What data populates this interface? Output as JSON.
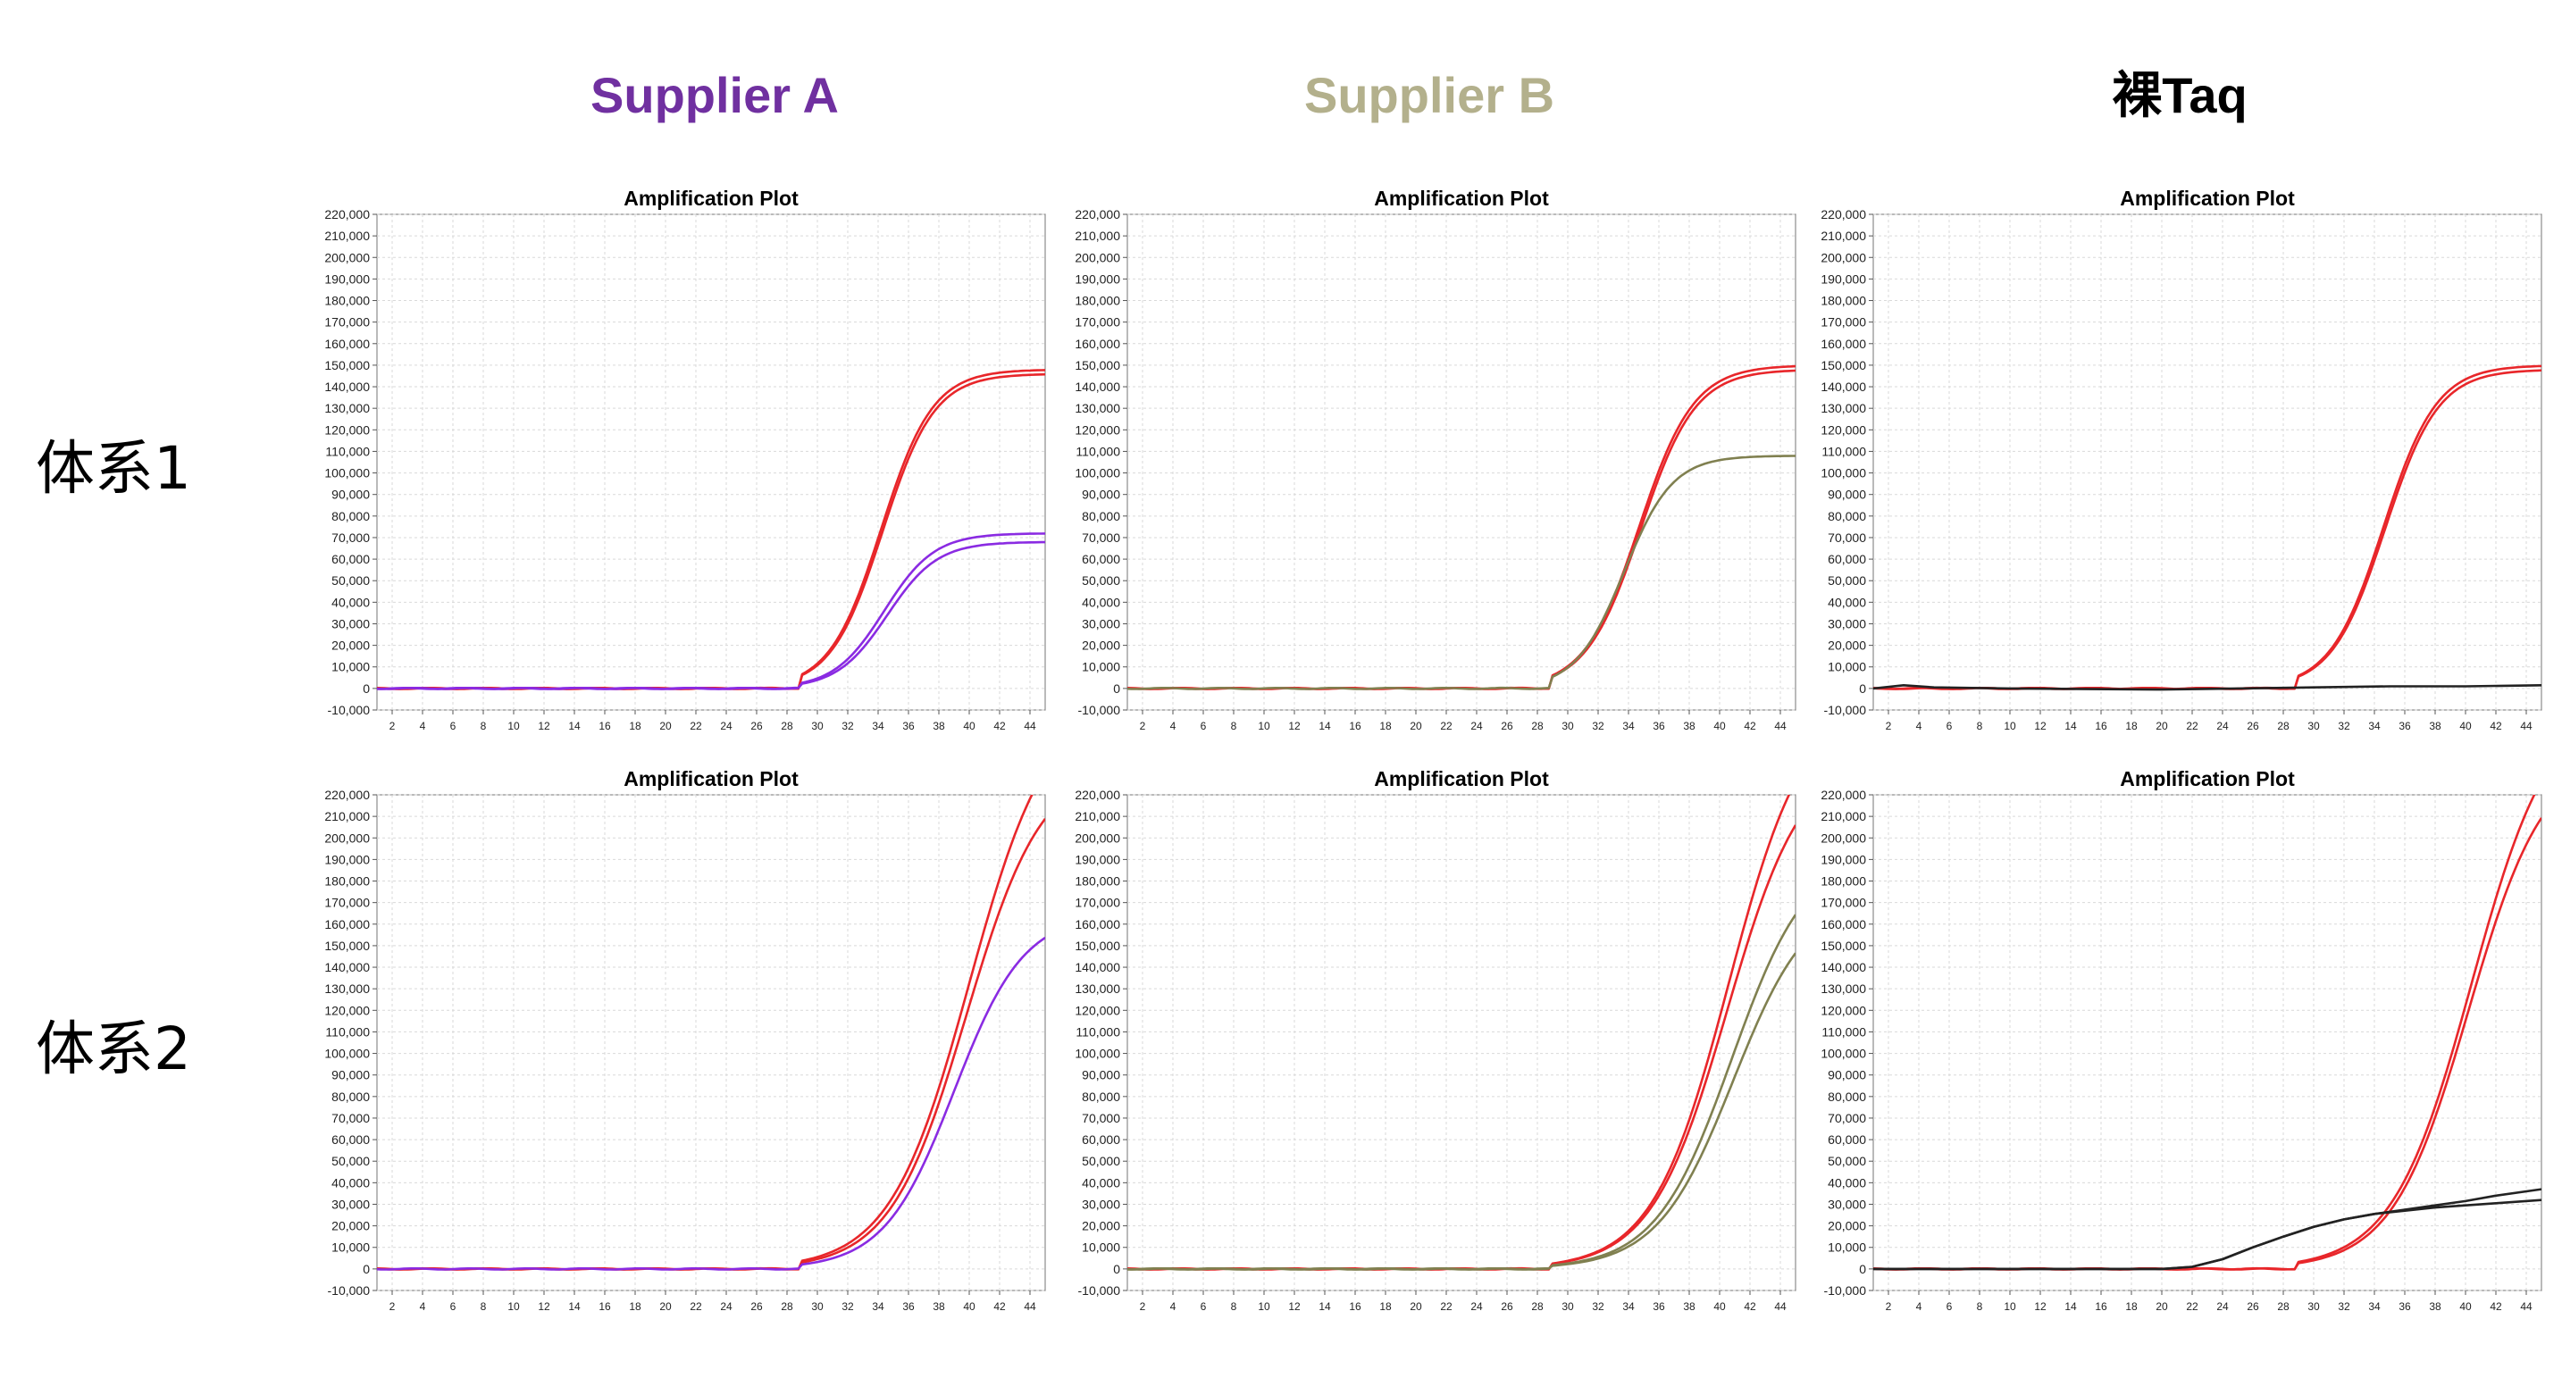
{
  "colors": {
    "supplier_a": "#7030a0",
    "supplier_b": "#b3b08c",
    "bare_taq": "#000000",
    "red_curve": "#e8262a",
    "purple_curve": "#8a2be2",
    "olive_curve": "#808050",
    "black_curve": "#222222",
    "grid": "#d9d9d9"
  },
  "column_headers": [
    "Supplier A",
    "Supplier B",
    "裸Taq"
  ],
  "row_labels": [
    "体系1",
    "体系2"
  ],
  "chart_data": [
    {
      "type": "line",
      "title": "Amplification Plot",
      "xlabel": "",
      "ylabel": "",
      "xlim": [
        1,
        45
      ],
      "ylim": [
        -10000,
        220000
      ],
      "x_ticks": [
        2,
        4,
        6,
        8,
        10,
        12,
        14,
        16,
        18,
        20,
        22,
        24,
        26,
        28,
        30,
        32,
        34,
        36,
        38,
        40,
        42,
        44
      ],
      "y_ticks": [
        -10000,
        0,
        10000,
        20000,
        30000,
        40000,
        50000,
        60000,
        70000,
        80000,
        90000,
        100000,
        110000,
        120000,
        130000,
        140000,
        150000,
        160000,
        170000,
        180000,
        190000,
        200000,
        210000,
        220000
      ],
      "grid": true,
      "series": [
        {
          "color": "red_curve",
          "plateau": 148000,
          "midpoint": 34.2,
          "slope": 1.7,
          "min_cycle": 29
        },
        {
          "color": "red_curve",
          "plateau": 146000,
          "midpoint": 34.3,
          "slope": 1.7,
          "min_cycle": 29
        },
        {
          "color": "purple_curve",
          "plateau": 72000,
          "midpoint": 34.4,
          "slope": 1.65,
          "min_cycle": 29
        },
        {
          "color": "purple_curve",
          "plateau": 68000,
          "midpoint": 34.6,
          "slope": 1.65,
          "min_cycle": 29
        }
      ]
    },
    {
      "type": "line",
      "title": "Amplification Plot",
      "xlabel": "",
      "ylabel": "",
      "xlim": [
        1,
        45
      ],
      "ylim": [
        -10000,
        220000
      ],
      "x_ticks": [
        2,
        4,
        6,
        8,
        10,
        12,
        14,
        16,
        18,
        20,
        22,
        24,
        26,
        28,
        30,
        32,
        34,
        36,
        38,
        40,
        42,
        44
      ],
      "y_ticks": [
        -10000,
        0,
        10000,
        20000,
        30000,
        40000,
        50000,
        60000,
        70000,
        80000,
        90000,
        100000,
        110000,
        120000,
        130000,
        140000,
        150000,
        160000,
        170000,
        180000,
        190000,
        200000,
        210000,
        220000
      ],
      "grid": true,
      "series": [
        {
          "color": "red_curve",
          "plateau": 150000,
          "midpoint": 34.7,
          "slope": 1.8,
          "min_cycle": 29
        },
        {
          "color": "red_curve",
          "plateau": 148000,
          "midpoint": 34.8,
          "slope": 1.8,
          "min_cycle": 29
        },
        {
          "color": "olive_curve",
          "plateau": 108000,
          "midpoint": 33.7,
          "slope": 1.6,
          "min_cycle": 29
        }
      ]
    },
    {
      "type": "line",
      "title": "Amplification Plot",
      "xlabel": "",
      "ylabel": "",
      "xlim": [
        1,
        45
      ],
      "ylim": [
        -10000,
        220000
      ],
      "x_ticks": [
        2,
        4,
        6,
        8,
        10,
        12,
        14,
        16,
        18,
        20,
        22,
        24,
        26,
        28,
        30,
        32,
        34,
        36,
        38,
        40,
        42,
        44
      ],
      "y_ticks": [
        -10000,
        0,
        10000,
        20000,
        30000,
        40000,
        50000,
        60000,
        70000,
        80000,
        90000,
        100000,
        110000,
        120000,
        130000,
        140000,
        150000,
        160000,
        170000,
        180000,
        190000,
        200000,
        210000,
        220000
      ],
      "grid": true,
      "series": [
        {
          "color": "red_curve",
          "plateau": 150000,
          "midpoint": 34.6,
          "slope": 1.75,
          "min_cycle": 29
        },
        {
          "color": "red_curve",
          "plateau": 148000,
          "midpoint": 34.7,
          "slope": 1.75,
          "min_cycle": 29
        },
        {
          "color": "black_curve",
          "points": [
            [
              1,
              0
            ],
            [
              3,
              1500
            ],
            [
              5,
              500
            ],
            [
              10,
              0
            ],
            [
              20,
              -500
            ],
            [
              25,
              0
            ],
            [
              30,
              500
            ],
            [
              35,
              1000
            ],
            [
              40,
              1000
            ],
            [
              45,
              1500
            ]
          ]
        }
      ]
    },
    {
      "type": "line",
      "title": "Amplification Plot",
      "xlabel": "",
      "ylabel": "",
      "xlim": [
        1,
        45
      ],
      "ylim": [
        -10000,
        220000
      ],
      "x_ticks": [
        2,
        4,
        6,
        8,
        10,
        12,
        14,
        16,
        18,
        20,
        22,
        24,
        26,
        28,
        30,
        32,
        34,
        36,
        38,
        40,
        42,
        44
      ],
      "y_ticks": [
        -10000,
        0,
        10000,
        20000,
        30000,
        40000,
        50000,
        60000,
        70000,
        80000,
        90000,
        100000,
        110000,
        120000,
        130000,
        140000,
        150000,
        160000,
        170000,
        180000,
        190000,
        200000,
        210000,
        220000
      ],
      "grid": true,
      "series": [
        {
          "color": "red_curve",
          "plateau": 265000,
          "midpoint": 40.0,
          "slope": 2.6,
          "min_cycle": 29
        },
        {
          "color": "red_curve",
          "plateau": 235000,
          "midpoint": 39.8,
          "slope": 2.5,
          "min_cycle": 29
        },
        {
          "color": "purple_curve",
          "plateau": 165000,
          "midpoint": 39.0,
          "slope": 2.3,
          "min_cycle": 29
        }
      ]
    },
    {
      "type": "line",
      "title": "Amplification Plot",
      "xlabel": "",
      "ylabel": "",
      "xlim": [
        1,
        45
      ],
      "ylim": [
        -10000,
        220000
      ],
      "x_ticks": [
        2,
        4,
        6,
        8,
        10,
        12,
        14,
        16,
        18,
        20,
        22,
        24,
        26,
        28,
        30,
        32,
        34,
        36,
        38,
        40,
        42,
        44
      ],
      "y_ticks": [
        -10000,
        0,
        10000,
        20000,
        30000,
        40000,
        50000,
        60000,
        70000,
        80000,
        90000,
        100000,
        110000,
        120000,
        130000,
        140000,
        150000,
        160000,
        170000,
        180000,
        190000,
        200000,
        210000,
        220000
      ],
      "grid": true,
      "series": [
        {
          "color": "red_curve",
          "plateau": 265000,
          "midpoint": 40.6,
          "slope": 2.5,
          "min_cycle": 29
        },
        {
          "color": "red_curve",
          "plateau": 240000,
          "midpoint": 40.5,
          "slope": 2.5,
          "min_cycle": 29
        },
        {
          "color": "olive_curve",
          "plateau": 195000,
          "midpoint": 40.8,
          "slope": 2.5,
          "min_cycle": 29
        },
        {
          "color": "olive_curve",
          "plateau": 175000,
          "midpoint": 40.9,
          "slope": 2.5,
          "min_cycle": 29
        }
      ]
    },
    {
      "type": "line",
      "title": "Amplification Plot",
      "xlabel": "",
      "ylabel": "",
      "xlim": [
        1,
        45
      ],
      "ylim": [
        -10000,
        220000
      ],
      "x_ticks": [
        2,
        4,
        6,
        8,
        10,
        12,
        14,
        16,
        18,
        20,
        22,
        24,
        26,
        28,
        30,
        32,
        34,
        36,
        38,
        40,
        42,
        44
      ],
      "y_ticks": [
        -10000,
        0,
        10000,
        20000,
        30000,
        40000,
        50000,
        60000,
        70000,
        80000,
        90000,
        100000,
        110000,
        120000,
        130000,
        140000,
        150000,
        160000,
        170000,
        180000,
        190000,
        200000,
        210000,
        220000
      ],
      "grid": true,
      "series": [
        {
          "color": "red_curve",
          "plateau": 265000,
          "midpoint": 40.4,
          "slope": 2.6,
          "min_cycle": 29
        },
        {
          "color": "red_curve",
          "plateau": 240000,
          "midpoint": 40.2,
          "slope": 2.5,
          "min_cycle": 29
        },
        {
          "color": "black_curve",
          "points": [
            [
              1,
              0
            ],
            [
              20,
              0
            ],
            [
              22,
              1000
            ],
            [
              24,
              4500
            ],
            [
              26,
              10000
            ],
            [
              28,
              15000
            ],
            [
              30,
              19500
            ],
            [
              32,
              23000
            ],
            [
              34,
              25500
            ],
            [
              36,
              27500
            ],
            [
              38,
              29500
            ],
            [
              40,
              31500
            ],
            [
              42,
              34000
            ],
            [
              45,
              37000
            ]
          ]
        },
        {
          "color": "black_curve",
          "points": [
            [
              1,
              0
            ],
            [
              20,
              0
            ],
            [
              22,
              1000
            ],
            [
              24,
              4500
            ],
            [
              26,
              10000
            ],
            [
              28,
              15000
            ],
            [
              30,
              19500
            ],
            [
              32,
              23000
            ],
            [
              34,
              25500
            ],
            [
              36,
              27000
            ],
            [
              38,
              28500
            ],
            [
              40,
              29500
            ],
            [
              42,
              30500
            ],
            [
              45,
              32000
            ]
          ]
        }
      ]
    }
  ]
}
